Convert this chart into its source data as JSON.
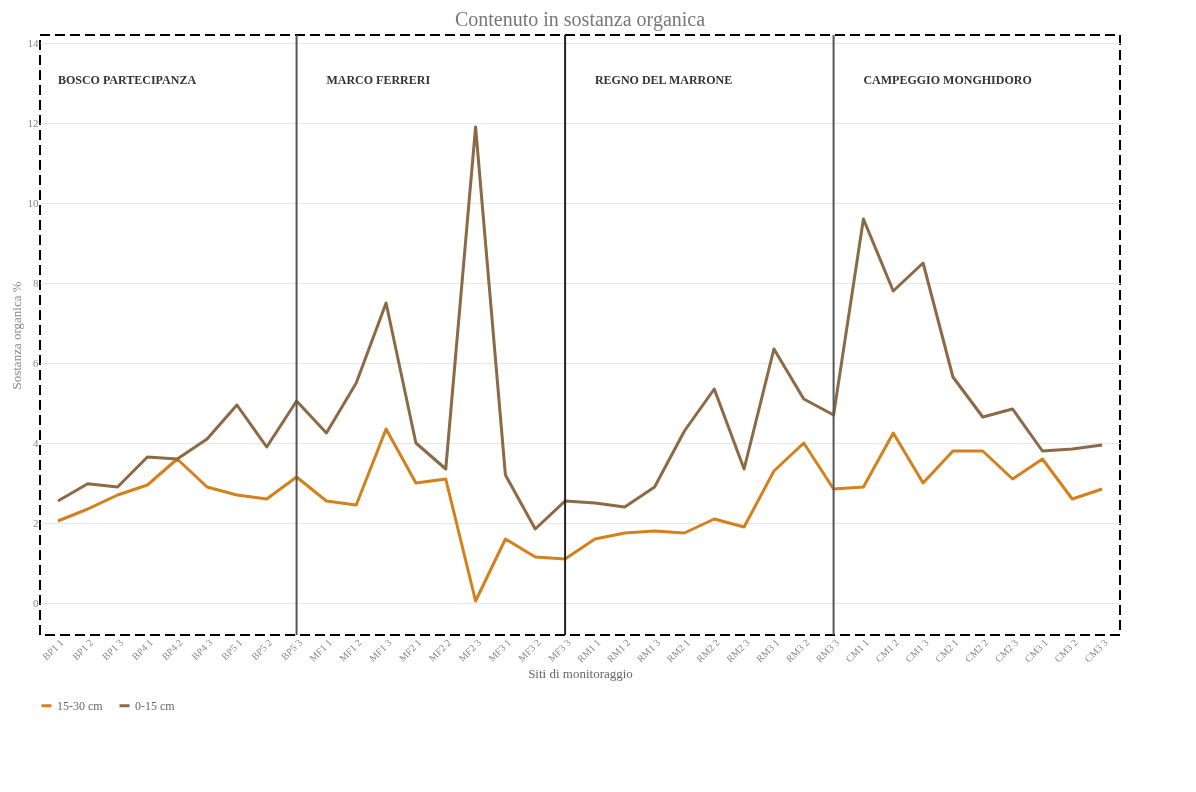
{
  "chart_data": {
    "type": "line",
    "title": "Contenuto in sostanza organica",
    "xlabel": "Siti di monitoraggio",
    "ylabel": "Sostanza organica %",
    "categories": [
      "BP1 1",
      "BP1 2",
      "BP1 3",
      "BP4 1",
      "BP4 2",
      "BP4 3",
      "BP5 1",
      "BP5 2",
      "BP5 3",
      "MF1 1",
      "MF1 2",
      "MF1 3",
      "MF2 1",
      "MF2 2",
      "MF2 3",
      "MF3 1",
      "MF3 2",
      "MF3 3",
      "RM1 1",
      "RM1 2",
      "RM1 3",
      "RM2 1",
      "RM2 2",
      "RM2 3",
      "RM3 1",
      "RM3 2",
      "RM3 3",
      "CM1 1",
      "CM1 2",
      "CM1 3",
      "CM2 1",
      "CM2 2",
      "CM2 3",
      "CM3 1",
      "CM3 2",
      "CM3 3"
    ],
    "series": [
      {
        "name": "15-30 cm",
        "color": "#d4801c",
        "values": [
          2.05,
          2.35,
          2.7,
          2.95,
          3.6,
          2.9,
          2.7,
          2.6,
          3.15,
          2.55,
          2.45,
          4.35,
          3.0,
          3.1,
          0.05,
          1.6,
          1.15,
          1.1,
          1.6,
          1.75,
          1.8,
          1.75,
          2.1,
          1.9,
          3.3,
          4.0,
          2.85,
          2.9,
          4.25,
          3.0,
          3.8,
          3.8,
          3.1,
          3.6,
          2.6,
          2.85
        ]
      },
      {
        "name": "0-15 cm",
        "color": "#8b6a45",
        "values": [
          2.55,
          2.98,
          2.9,
          3.65,
          3.6,
          4.1,
          4.95,
          3.9,
          5.05,
          4.25,
          5.5,
          7.5,
          4.0,
          3.35,
          11.9,
          3.2,
          1.85,
          2.55,
          2.5,
          2.4,
          2.9,
          4.3,
          5.35,
          3.35,
          6.35,
          5.1,
          4.7,
          9.6,
          7.8,
          8.5,
          5.65,
          4.65,
          4.85,
          3.8,
          3.85,
          3.95
        ]
      }
    ],
    "ylim": [
      -0.8,
      14.2
    ],
    "yticks": [
      0,
      2,
      4,
      6,
      8,
      10,
      12,
      14
    ],
    "grid": "y",
    "legend": "bottom",
    "marker": "none",
    "line_style": "solid",
    "ref_lines": [
      {
        "axis": "x",
        "value": "BP5 3",
        "color": "#555555"
      },
      {
        "axis": "x",
        "value": "MF3 3",
        "color": "#222222"
      },
      {
        "axis": "x",
        "value": "RM3 3",
        "color": "#555555"
      }
    ],
    "annotations": [
      "BOSCO PARTECIPANZA",
      "MARCO  FERRERI",
      "REGNO  DEL  MARRONE",
      "CAMPEGGIO  MONGHIDORO"
    ]
  }
}
